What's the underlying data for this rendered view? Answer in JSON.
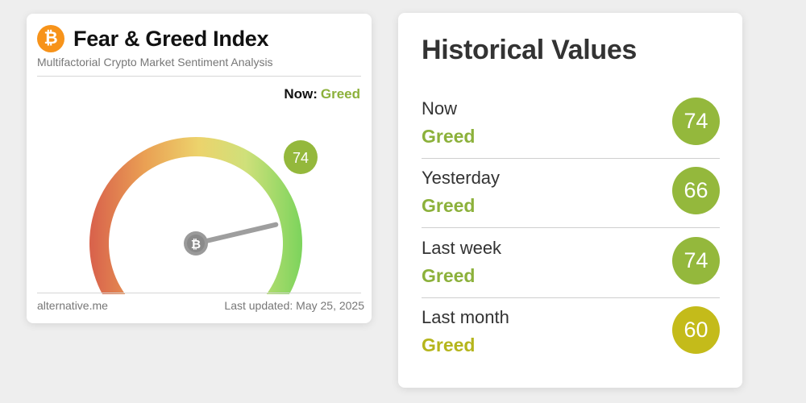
{
  "index_card": {
    "title": "Fear & Greed Index",
    "subtitle": "Multifactorial Crypto Market Sentiment Analysis",
    "now_label": "Now:",
    "now_value": "Greed",
    "gauge_value": 74,
    "gauge_max": 100,
    "gauge_badge": "74",
    "source": "alternative.me",
    "last_updated": "Last updated: May 25, 2025"
  },
  "historical": {
    "title": "Historical Values",
    "rows": [
      {
        "label": "Now",
        "classification": "Greed",
        "value": "74",
        "color": "#94b83c",
        "class_color": "#8cb13b"
      },
      {
        "label": "Yesterday",
        "classification": "Greed",
        "value": "66",
        "color": "#94b83c",
        "class_color": "#8cb13b"
      },
      {
        "label": "Last week",
        "classification": "Greed",
        "value": "74",
        "color": "#94b83c",
        "class_color": "#8cb13b"
      },
      {
        "label": "Last month",
        "classification": "Greed",
        "value": "60",
        "color": "#c4bb1a",
        "class_color": "#b5b51c"
      }
    ]
  },
  "colors": {
    "greed": "#8cb13b",
    "bitcoin_orange": "#f7931a"
  },
  "icons": [
    "bitcoin-logo-icon",
    "bitcoin-hub-icon"
  ]
}
